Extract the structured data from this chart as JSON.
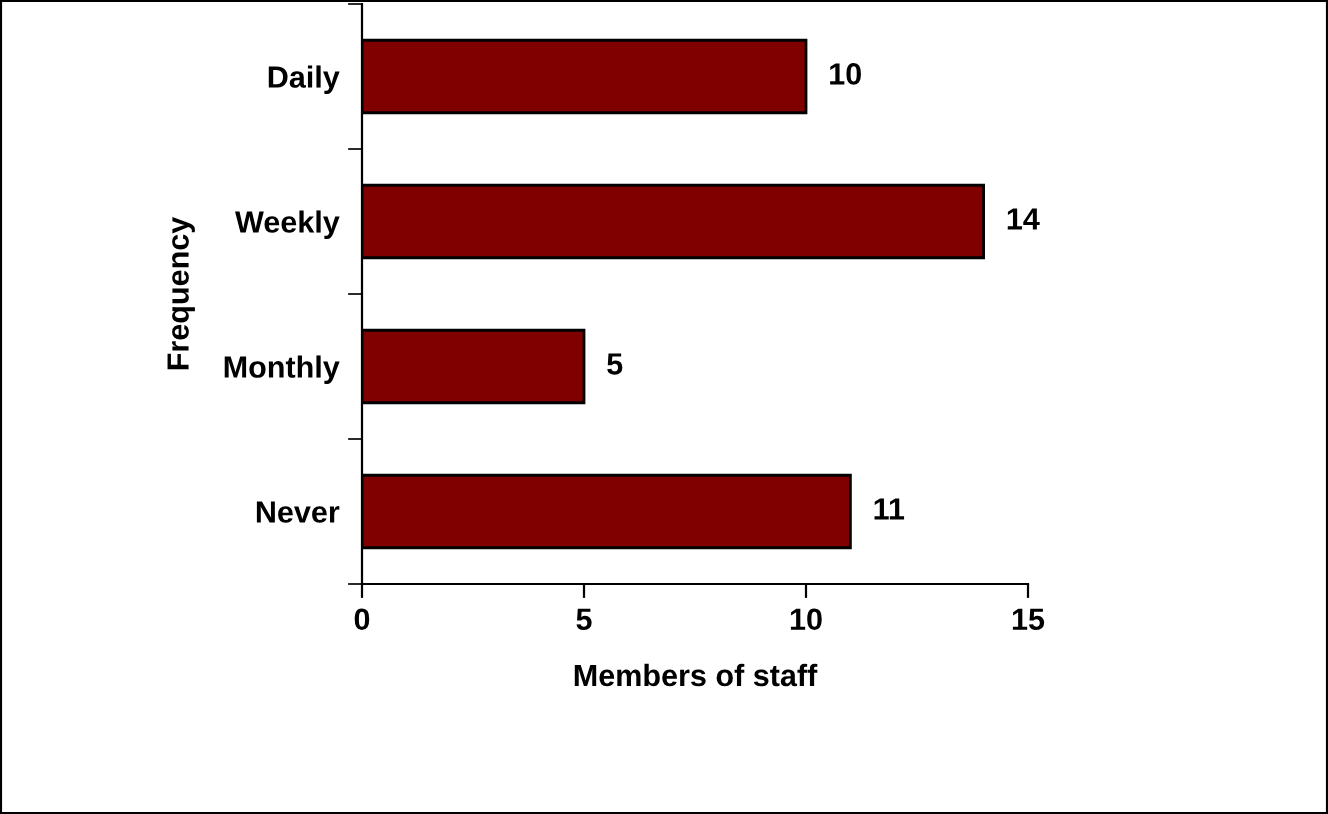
{
  "chart_data": {
    "type": "bar",
    "orientation": "horizontal",
    "xlabel": "Members of staff",
    "ylabel": "Frequency",
    "categories": [
      "Daily",
      "Weekly",
      "Monthly",
      "Never"
    ],
    "values": [
      10,
      14,
      5,
      11
    ],
    "color": "#800000",
    "data_labels": true,
    "xlim": [
      0,
      15
    ],
    "xticks": [
      0,
      5,
      10,
      15
    ],
    "grid": false,
    "legend": false
  }
}
